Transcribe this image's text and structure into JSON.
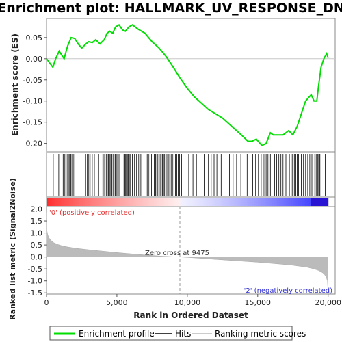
{
  "chart_data": {
    "type": "line",
    "title": "Enrichment plot: HALLMARK_UV_RESPONSE_DN",
    "es_panel": {
      "ylabel": "Enrichment score (ES)",
      "ylim": [
        -0.22,
        0.095
      ],
      "yticks": [
        "0.05",
        "0.00",
        "-0.05",
        "-0.10",
        "-0.15",
        "-0.20"
      ],
      "ytick_values": [
        0.05,
        0.0,
        -0.05,
        -0.1,
        -0.15,
        -0.2
      ]
    },
    "rank_panel": {
      "ylabel": "Ranked list metric (Signal2Noise)",
      "ylim": [
        -1.55,
        2.1
      ],
      "yticks": [
        "2.0",
        "1.5",
        "1.0",
        "0.5",
        "0.0",
        "-0.5",
        "-1.0",
        "-1.5"
      ],
      "ytick_values": [
        2.0,
        1.5,
        1.0,
        0.5,
        0.0,
        -0.5,
        -1.0,
        -1.5
      ],
      "pos_label": "'0' (positively correlated)",
      "neg_label": "'2' (negatively correlated)",
      "zero_cross_label": "Zero cross at 9475",
      "zero_cross": 9475
    },
    "xlabel": "Rank in Ordered Dataset",
    "xlim": [
      0,
      20500
    ],
    "xticks": [
      "0",
      "5,000",
      "10,000",
      "15,000",
      "20,000"
    ],
    "xtick_values": [
      0,
      5000,
      10000,
      15000,
      20000
    ],
    "n_genes": 20000,
    "series": [
      {
        "name": "Enrichment profile",
        "color": "#00dd00",
        "x": [
          0,
          450,
          650,
          900,
          1250,
          1500,
          1750,
          2000,
          2250,
          2500,
          2800,
          3000,
          3250,
          3500,
          3800,
          4100,
          4300,
          4500,
          4700,
          4900,
          5150,
          5400,
          5600,
          5850,
          6100,
          6500,
          7000,
          7500,
          8000,
          8500,
          9000,
          9475,
          10000,
          10500,
          11000,
          11500,
          12000,
          12500,
          13000,
          13500,
          14000,
          14300,
          14600,
          14900,
          15300,
          15600,
          15900,
          16100,
          16500,
          16800,
          17200,
          17500,
          17800,
          18100,
          18400,
          18800,
          19000,
          19200,
          19300,
          19500,
          19700,
          19900,
          20000
        ],
        "y": [
          0.0,
          -0.02,
          0.0,
          0.018,
          0.0,
          0.03,
          0.05,
          0.048,
          0.035,
          0.025,
          0.035,
          0.04,
          0.038,
          0.045,
          0.035,
          0.045,
          0.06,
          0.065,
          0.06,
          0.075,
          0.08,
          0.068,
          0.065,
          0.075,
          0.08,
          0.07,
          0.06,
          0.04,
          0.025,
          0.005,
          -0.02,
          -0.045,
          -0.07,
          -0.09,
          -0.105,
          -0.12,
          -0.13,
          -0.14,
          -0.155,
          -0.17,
          -0.185,
          -0.195,
          -0.195,
          -0.19,
          -0.205,
          -0.2,
          -0.175,
          -0.18,
          -0.18,
          -0.18,
          -0.17,
          -0.18,
          -0.16,
          -0.13,
          -0.1,
          -0.085,
          -0.1,
          -0.1,
          -0.07,
          -0.02,
          0.0,
          0.012,
          0.002
        ]
      },
      {
        "name": "Hits",
        "color": "#000000",
        "x": [
          480,
          600,
          760,
          870,
          1180,
          1300,
          1400,
          1500,
          1560,
          1640,
          1720,
          1800,
          1900,
          2000,
          2600,
          2780,
          2900,
          3000,
          3100,
          3250,
          3400,
          3520,
          3700,
          4000,
          4080,
          4160,
          4240,
          4320,
          4400,
          4480,
          4560,
          4640,
          4720,
          4800,
          4880,
          4960,
          5050,
          5150,
          5500,
          5560,
          5620,
          5680,
          5740,
          5800,
          5860,
          5920,
          5980,
          6100,
          6250,
          6400,
          6550,
          6700,
          7150,
          7250,
          7350,
          7450,
          7550,
          7650,
          7750,
          7830,
          7910,
          7990,
          8070,
          8150,
          8230,
          8310,
          8390,
          8470,
          8550,
          8650,
          8750,
          8850,
          8950,
          9050,
          9150,
          9250,
          9350,
          9450,
          9600,
          10100,
          10400,
          10650,
          10900,
          11200,
          11500,
          11700,
          11900,
          12100,
          12400,
          13000,
          13250,
          13500,
          13800,
          14250,
          14450,
          14650,
          14850,
          15050,
          15250,
          15400,
          15500,
          15600,
          15700,
          15800,
          15900,
          16000,
          16200,
          16350,
          16500,
          16650,
          16800,
          17000,
          17250,
          17450,
          17600,
          17700,
          17800,
          17900,
          18000,
          18100,
          18250,
          18400,
          18550,
          18700,
          18850,
          19050,
          19150,
          19250,
          19330,
          19410,
          19490,
          19800
        ]
      },
      {
        "name": "Ranking metric scores",
        "color": "#bbbbbb",
        "x": [
          0,
          30,
          80,
          150,
          300,
          500,
          800,
          1200,
          2000,
          3000,
          4000,
          5000,
          6000,
          7000,
          8000,
          9000,
          9475,
          10000,
          11000,
          12000,
          13000,
          14000,
          15000,
          16000,
          17000,
          17500,
          18000,
          18500,
          19000,
          19300,
          19500,
          19700,
          19850,
          19950,
          20000
        ],
        "y": [
          1.85,
          1.1,
          0.95,
          0.82,
          0.7,
          0.6,
          0.52,
          0.45,
          0.37,
          0.3,
          0.24,
          0.18,
          0.13,
          0.08,
          0.04,
          0.01,
          0.0,
          -0.02,
          -0.06,
          -0.1,
          -0.14,
          -0.18,
          -0.22,
          -0.27,
          -0.32,
          -0.35,
          -0.39,
          -0.43,
          -0.5,
          -0.56,
          -0.62,
          -0.7,
          -0.82,
          -1.0,
          -1.5
        ]
      }
    ],
    "legend": {
      "placement": "bottom",
      "entries": [
        "Enrichment profile",
        "Hits",
        "Ranking metric scores"
      ]
    },
    "grid": false
  }
}
